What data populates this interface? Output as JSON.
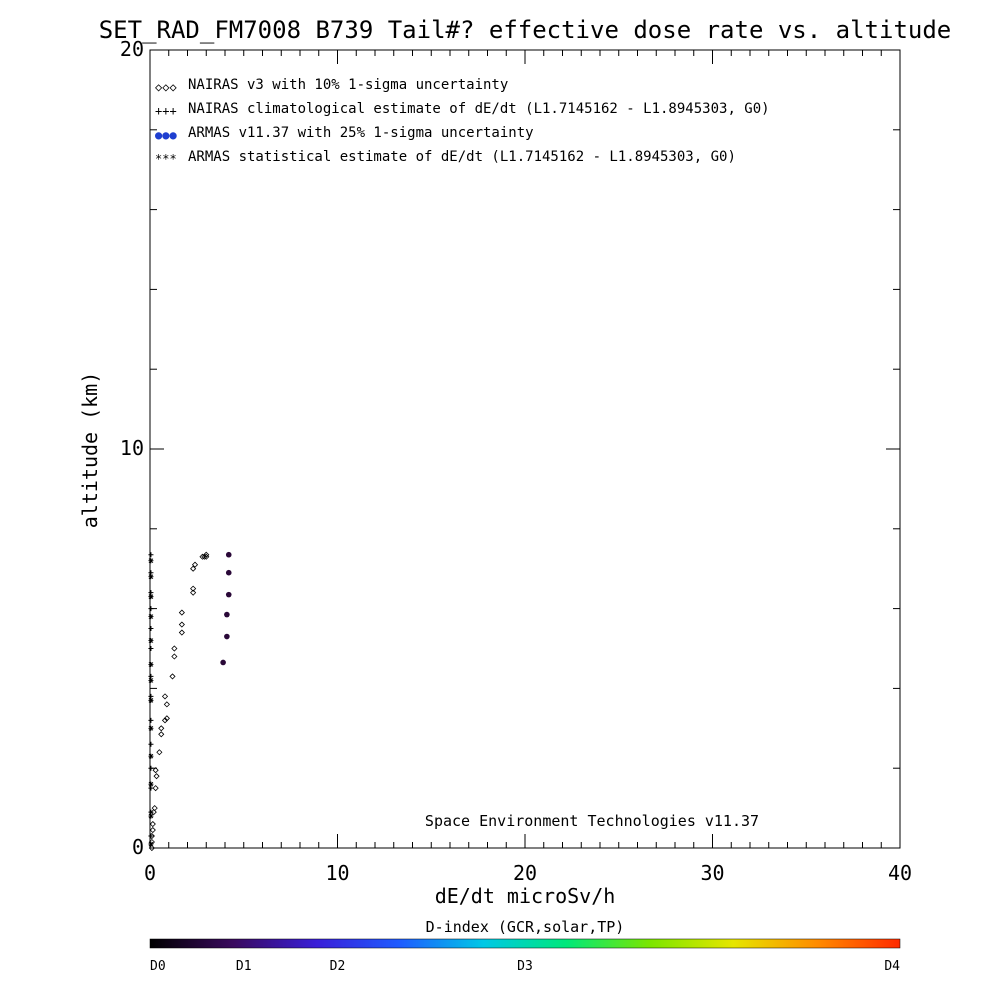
{
  "chart_data": {
    "type": "scatter",
    "title": "SET_RAD_FM7008  B739 Tail#? effective dose rate vs. altitude",
    "xlabel": "dE/dt microSv/h",
    "ylabel": "altitude (km)",
    "xlim": [
      0,
      40
    ],
    "ylim": [
      0,
      20
    ],
    "x_ticks": [
      0,
      10,
      20,
      30,
      40
    ],
    "y_ticks": [
      0,
      10,
      20
    ],
    "grid": false,
    "legend_placement": "top-left",
    "credit": "Space Environment Technologies v11.37",
    "legend": [
      {
        "label": "NAIRAS v3 with 10% 1-sigma uncertainty",
        "marker": "◇◇◇",
        "color": "#000000"
      },
      {
        "label": "NAIRAS climatological estimate of dE/dt (L1.7145162 - L1.8945303, G0)",
        "marker": "+++",
        "color": "#000000"
      },
      {
        "label": "ARMAS v11.37 with 25% 1-sigma uncertainty",
        "marker": "●●●",
        "color": "#1f3fd0"
      },
      {
        "label": "ARMAS statistical estimate of dE/dt (L1.7145162 - L1.8945303, G0)",
        "marker": "***",
        "color": "#000000"
      }
    ],
    "series": [
      {
        "marker": "diamond",
        "points": [
          [
            0.1,
            0.0
          ],
          [
            0.1,
            0.15
          ],
          [
            0.1,
            0.3
          ],
          [
            0.15,
            0.45
          ],
          [
            0.15,
            0.6
          ],
          [
            0.2,
            0.9
          ],
          [
            0.25,
            1.0
          ],
          [
            0.3,
            1.5
          ],
          [
            0.35,
            1.8
          ],
          [
            0.3,
            1.95
          ],
          [
            0.5,
            2.4
          ],
          [
            0.6,
            2.85
          ],
          [
            0.6,
            3.0
          ],
          [
            0.8,
            3.2
          ],
          [
            0.9,
            3.25
          ],
          [
            0.9,
            3.6
          ],
          [
            0.8,
            3.8
          ],
          [
            1.2,
            4.3
          ],
          [
            1.3,
            4.8
          ],
          [
            1.3,
            5.0
          ],
          [
            1.7,
            5.4
          ],
          [
            1.7,
            5.6
          ],
          [
            1.7,
            5.9
          ],
          [
            2.3,
            6.4
          ],
          [
            2.3,
            6.5
          ],
          [
            2.3,
            7.0
          ],
          [
            2.4,
            7.1
          ],
          [
            2.8,
            7.3
          ],
          [
            2.9,
            7.3
          ],
          [
            3.0,
            7.3
          ],
          [
            3.0,
            7.35
          ]
        ]
      },
      {
        "marker": "plus",
        "points": [
          [
            0.05,
            0.3
          ],
          [
            0.05,
            0.9
          ],
          [
            0.05,
            1.5
          ],
          [
            0.05,
            2.0
          ],
          [
            0.05,
            2.6
          ],
          [
            0.05,
            3.2
          ],
          [
            0.05,
            3.8
          ],
          [
            0.05,
            4.3
          ],
          [
            0.05,
            5.0
          ],
          [
            0.05,
            5.5
          ],
          [
            0.05,
            6.0
          ],
          [
            0.05,
            6.4
          ],
          [
            0.05,
            6.9
          ],
          [
            0.05,
            7.35
          ]
        ]
      },
      {
        "marker": "dot",
        "color": "#2a0838",
        "points": [
          [
            3.9,
            4.65
          ],
          [
            4.1,
            5.3
          ],
          [
            4.1,
            5.85
          ],
          [
            4.2,
            6.35
          ],
          [
            4.2,
            6.9
          ],
          [
            4.2,
            7.35
          ]
        ]
      },
      {
        "marker": "asterisk",
        "points": [
          [
            0.05,
            0.1
          ],
          [
            0.05,
            0.8
          ],
          [
            0.05,
            1.6
          ],
          [
            0.05,
            2.3
          ],
          [
            0.05,
            3.0
          ],
          [
            0.05,
            3.7
          ],
          [
            0.05,
            4.2
          ],
          [
            0.05,
            4.6
          ],
          [
            0.05,
            5.2
          ],
          [
            0.05,
            5.8
          ],
          [
            0.05,
            6.3
          ],
          [
            0.05,
            6.8
          ],
          [
            0.05,
            7.2
          ]
        ]
      }
    ],
    "colorbar": {
      "title": "D-index (GCR,solar,TP)",
      "labels": [
        {
          "text": "D0",
          "pos": 0.0
        },
        {
          "text": "D1",
          "pos": 0.125
        },
        {
          "text": "D2",
          "pos": 0.25
        },
        {
          "text": "D3",
          "pos": 0.5
        },
        {
          "text": "D4",
          "pos": 1.0
        }
      ],
      "colors": [
        "#000000",
        "#3a0a5e",
        "#3a1fd8",
        "#1f5cff",
        "#00c8e6",
        "#00e87a",
        "#7be600",
        "#e6e600",
        "#ff8c00",
        "#ff2a00"
      ]
    }
  }
}
